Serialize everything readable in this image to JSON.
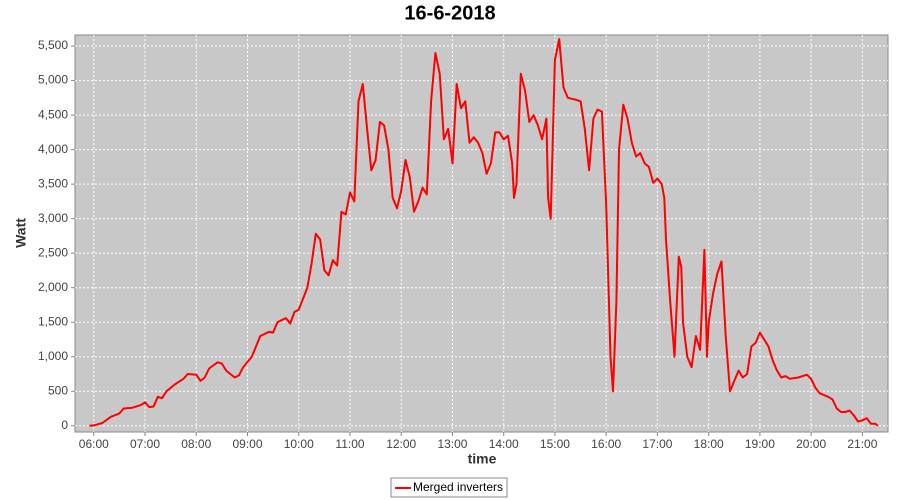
{
  "chart_data": {
    "type": "line",
    "title": "16-6-2018",
    "x_label": "time",
    "y_label": "Watt",
    "x": [
      "05:55",
      "06:00",
      "06:10",
      "06:20",
      "06:30",
      "06:35",
      "06:45",
      "06:55",
      "07:00",
      "07:05",
      "07:10",
      "07:15",
      "07:20",
      "07:25",
      "07:35",
      "07:45",
      "07:50",
      "08:00",
      "08:05",
      "08:10",
      "08:15",
      "08:25",
      "08:30",
      "08:35",
      "08:45",
      "08:50",
      "08:55",
      "09:05",
      "09:15",
      "09:25",
      "09:30",
      "09:35",
      "09:45",
      "09:50",
      "09:55",
      "10:00",
      "10:10",
      "10:15",
      "10:20",
      "10:25",
      "10:30",
      "10:35",
      "10:40",
      "10:45",
      "10:50",
      "10:55",
      "11:00",
      "11:05",
      "11:10",
      "11:15",
      "11:20",
      "11:25",
      "11:30",
      "11:35",
      "11:40",
      "11:45",
      "11:50",
      "11:55",
      "12:00",
      "12:05",
      "12:10",
      "12:15",
      "12:20",
      "12:25",
      "12:30",
      "12:35",
      "12:40",
      "12:45",
      "12:50",
      "12:55",
      "13:00",
      "13:05",
      "13:10",
      "13:15",
      "13:20",
      "13:25",
      "13:30",
      "13:35",
      "13:40",
      "13:45",
      "13:50",
      "13:55",
      "14:00",
      "14:05",
      "14:10",
      "14:12",
      "14:15",
      "14:20",
      "14:25",
      "14:30",
      "14:35",
      "14:40",
      "14:45",
      "14:50",
      "14:52",
      "14:55",
      "15:00",
      "15:05",
      "15:10",
      "15:15",
      "15:25",
      "15:30",
      "15:35",
      "15:40",
      "15:45",
      "15:50",
      "15:55",
      "16:00",
      "16:05",
      "16:08",
      "16:12",
      "16:15",
      "16:20",
      "16:25",
      "16:30",
      "16:35",
      "16:40",
      "16:45",
      "16:50",
      "16:55",
      "17:00",
      "17:05",
      "17:08",
      "17:10",
      "17:15",
      "17:20",
      "17:25",
      "17:28",
      "17:30",
      "17:35",
      "17:40",
      "17:45",
      "17:50",
      "17:55",
      "17:58",
      "18:00",
      "18:05",
      "18:10",
      "18:15",
      "18:20",
      "18:25",
      "18:30",
      "18:35",
      "18:40",
      "18:45",
      "18:50",
      "18:55",
      "19:00",
      "19:05",
      "19:10",
      "19:15",
      "19:20",
      "19:25",
      "19:30",
      "19:35",
      "19:45",
      "19:55",
      "20:00",
      "20:05",
      "20:10",
      "20:20",
      "20:25",
      "20:30",
      "20:35",
      "20:40",
      "20:45",
      "20:50",
      "20:55",
      "21:00",
      "21:05",
      "21:10",
      "21:15",
      "21:18"
    ],
    "series": [
      {
        "name": "Merged inverters",
        "color": "#ff0000",
        "values": [
          0,
          5,
          40,
          130,
          180,
          250,
          260,
          300,
          340,
          270,
          280,
          420,
          400,
          500,
          600,
          680,
          750,
          740,
          650,
          700,
          830,
          920,
          900,
          800,
          700,
          730,
          850,
          1000,
          1300,
          1360,
          1350,
          1500,
          1560,
          1480,
          1650,
          1680,
          2000,
          2350,
          2780,
          2700,
          2250,
          2180,
          2400,
          2320,
          3100,
          3060,
          3380,
          3250,
          4700,
          4950,
          4300,
          3700,
          3850,
          4400,
          4350,
          4000,
          3300,
          3150,
          3400,
          3850,
          3600,
          3100,
          3250,
          3450,
          3350,
          4700,
          5400,
          5100,
          4150,
          4300,
          3800,
          4950,
          4600,
          4700,
          4100,
          4180,
          4100,
          3950,
          3650,
          3800,
          4250,
          4250,
          4150,
          4200,
          3800,
          3300,
          3500,
          5100,
          4850,
          4400,
          4500,
          4350,
          4150,
          4450,
          3300,
          3000,
          5300,
          5600,
          4900,
          4750,
          4720,
          4700,
          4300,
          3700,
          4450,
          4580,
          4550,
          3200,
          1000,
          500,
          1800,
          4000,
          4650,
          4450,
          4100,
          3900,
          3950,
          3800,
          3750,
          3520,
          3580,
          3500,
          3300,
          2700,
          1800,
          1000,
          2450,
          2300,
          1500,
          1000,
          850,
          1300,
          1100,
          2550,
          1000,
          1500,
          1900,
          2200,
          2380,
          1300,
          500,
          650,
          800,
          700,
          750,
          1150,
          1200,
          1350,
          1250,
          1150,
          950,
          800,
          700,
          720,
          680,
          700,
          740,
          680,
          550,
          470,
          420,
          380,
          250,
          200,
          200,
          220,
          150,
          60,
          80,
          110,
          30,
          30,
          0
        ]
      }
    ],
    "xlim": [
      "05:38",
      "21:30"
    ],
    "xticks": [
      "06:00",
      "07:00",
      "08:00",
      "09:00",
      "10:00",
      "11:00",
      "12:00",
      "13:00",
      "14:00",
      "15:00",
      "16:00",
      "17:00",
      "18:00",
      "19:00",
      "20:00",
      "21:00"
    ],
    "ylim": [
      -90,
      5660
    ],
    "yticks": [
      0,
      500,
      {
        "value": 1000,
        "label": "1,000"
      },
      {
        "value": 1500,
        "label": "1,500"
      },
      {
        "value": 2000,
        "label": "2,000"
      },
      {
        "value": 2500,
        "label": "2,500"
      },
      {
        "value": 3000,
        "label": "3,000"
      },
      {
        "value": 3500,
        "label": "3,500"
      },
      {
        "value": 4000,
        "label": "4,000"
      },
      {
        "value": 4500,
        "label": "4,500"
      },
      {
        "value": 5000,
        "label": "5,000"
      },
      {
        "value": 5500,
        "label": "5,500"
      }
    ],
    "grid": true,
    "legend": "bottom"
  }
}
